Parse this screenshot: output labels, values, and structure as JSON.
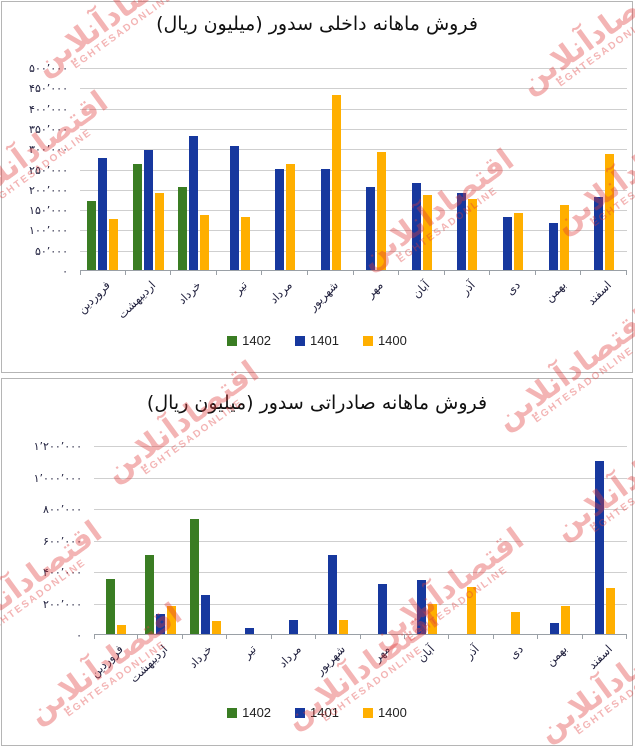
{
  "watermark": {
    "fa": "اقتصادآنلاین",
    "en": "EGHTESADONLINE"
  },
  "legend": [
    {
      "label": "1402",
      "color": "#3a7d23"
    },
    {
      "label": "1401",
      "color": "#17389e"
    },
    {
      "label": "1400",
      "color": "#ffaf00"
    }
  ],
  "chart_data": [
    {
      "type": "bar",
      "title": "فروش ماهانه داخلی سدور (میلیون ریال)",
      "categories": [
        "فروردین",
        "اردیبهشت",
        "خرداد",
        "تیر",
        "مرداد",
        "شهریور",
        "مهر",
        "آبان",
        "آذر",
        "دی",
        "بهمن",
        "اسفند"
      ],
      "series": [
        {
          "name": "1402",
          "color": "#3a7d23",
          "values": [
            170000,
            260000,
            205000,
            0,
            0,
            0,
            0,
            0,
            0,
            0,
            0,
            0
          ]
        },
        {
          "name": "1401",
          "color": "#17389e",
          "values": [
            275000,
            295000,
            330000,
            305000,
            250000,
            250000,
            205000,
            215000,
            190000,
            130000,
            115000,
            180000
          ]
        },
        {
          "name": "1400",
          "color": "#ffaf00",
          "values": [
            125000,
            190000,
            135000,
            130000,
            260000,
            430000,
            290000,
            185000,
            175000,
            140000,
            160000,
            285000
          ]
        }
      ],
      "ylim": [
        0,
        500000
      ],
      "ystep": 50000,
      "ytick_labels": [
        "۵۰۰٬۰۰۰",
        "۴۵۰٬۰۰۰",
        "۴۰۰٬۰۰۰",
        "۳۵۰٬۰۰۰",
        "۳۰۰٬۰۰۰",
        "۲۵۰٬۰۰۰",
        "۲۰۰٬۰۰۰",
        "۱۵۰٬۰۰۰",
        "۱۰۰٬۰۰۰",
        "۵۰٬۰۰۰",
        "۰"
      ],
      "grid": true,
      "legend_position": "bottom"
    },
    {
      "type": "bar",
      "title": "فروش ماهانه صادراتی سدور (میلیون ریال)",
      "categories": [
        "فروردین",
        "اردیبهشت",
        "خرداد",
        "تیر",
        "مرداد",
        "شهریور",
        "مهر",
        "آبان",
        "آذر",
        "دی",
        "بهمن",
        "اسفند"
      ],
      "series": [
        {
          "name": "1402",
          "color": "#3a7d23",
          "values": [
            350000,
            500000,
            730000,
            0,
            0,
            0,
            0,
            0,
            0,
            0,
            0,
            0
          ]
        },
        {
          "name": "1401",
          "color": "#17389e",
          "values": [
            0,
            130000,
            250000,
            40000,
            90000,
            500000,
            320000,
            340000,
            0,
            0,
            70000,
            1100000
          ]
        },
        {
          "name": "1400",
          "color": "#ffaf00",
          "values": [
            60000,
            175000,
            80000,
            0,
            0,
            90000,
            0,
            190000,
            300000,
            140000,
            175000,
            290000
          ]
        }
      ],
      "ylim": [
        0,
        1200000
      ],
      "ystep": 200000,
      "ytick_labels": [
        "۱٬۲۰۰٬۰۰۰",
        "۱٬۰۰۰٬۰۰۰",
        "۸۰۰٬۰۰۰",
        "۶۰۰٬۰۰۰",
        "۴۰۰٬۰۰۰",
        "۲۰۰٬۰۰۰",
        "۰"
      ],
      "grid": true,
      "legend_position": "bottom"
    }
  ]
}
